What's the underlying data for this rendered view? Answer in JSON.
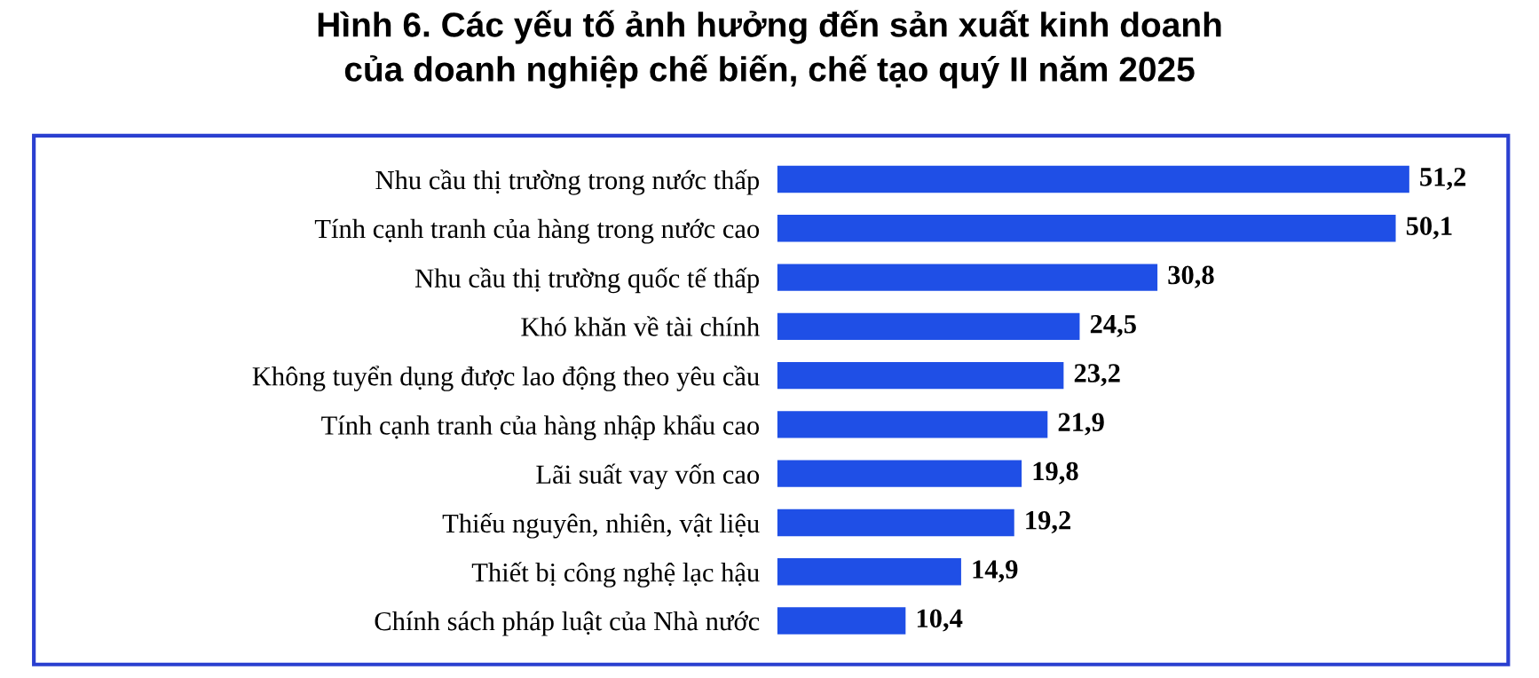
{
  "chart_data": {
    "type": "bar",
    "orientation": "horizontal",
    "title": "Hình 6. Các yếu tố ảnh hưởng đến sản xuất kinh doanh\ncủa doanh nghiệp chế biến, chế tạo quý II năm 2025",
    "categories": [
      "Nhu cầu thị trường trong nước thấp",
      "Tính cạnh tranh của hàng trong nước cao",
      "Nhu cầu thị trường quốc tế thấp",
      "Khó khăn về tài chính",
      "Không tuyển dụng được lao động theo yêu cầu",
      "Tính cạnh tranh của hàng nhập khẩu cao",
      "Lãi suất vay vốn cao",
      "Thiếu nguyên, nhiên, vật liệu",
      "Thiết bị công nghệ lạc hậu",
      "Chính sách pháp luật của Nhà nước"
    ],
    "values": [
      51.2,
      50.1,
      30.8,
      24.5,
      23.2,
      21.9,
      19.8,
      19.2,
      14.9,
      10.4
    ],
    "value_labels": [
      "51,2",
      "50,1",
      "30,8",
      "24,5",
      "23,2",
      "21,9",
      "19,8",
      "19,2",
      "14,9",
      "10,4"
    ],
    "color": "#1f4fe6",
    "tick_labels": "y",
    "grid": false,
    "legend": false
  }
}
